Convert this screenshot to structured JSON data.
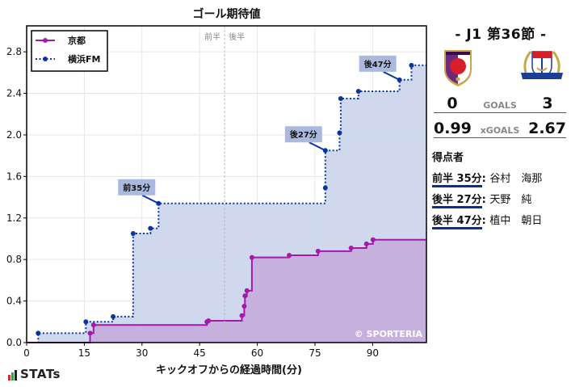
{
  "chart": {
    "title": "ゴール期待値",
    "half_labels": {
      "first": "前半",
      "second": "後半"
    },
    "watermark": "© SPORTERIA"
  },
  "sidebar": {
    "round": "- J1 第36節 -",
    "home_team": "京都",
    "away_team": "横浜FM",
    "goals_label": "GOALS",
    "home_goals": "0",
    "away_goals": "3",
    "xgoals_label": "xGOALS",
    "home_xg": "0.99",
    "away_xg": "2.67",
    "scorers_title": "得点者",
    "scorers": [
      {
        "when": "前半 35分",
        "name": "谷村　海那"
      },
      {
        "when": "後半 27分",
        "name": "天野　純"
      },
      {
        "when": "後半 47分",
        "name": "植中　朝日"
      }
    ]
  },
  "footer": {
    "brand": "STATs"
  },
  "colors": {
    "home": "#a31aab",
    "home_fill": "#c4aedd",
    "away": "#0a34a0",
    "away_fill": "#ccd6ec",
    "annotation_bg": "#aab9dd"
  },
  "chart_data": {
    "type": "line",
    "step": true,
    "title": "ゴール期待値",
    "xlabel": "キックオフからの経過時間(分)",
    "ylabel": "",
    "xlim": [
      0,
      104
    ],
    "ylim": [
      0,
      3.05
    ],
    "xticks": [
      0,
      15,
      30,
      45,
      60,
      75,
      90
    ],
    "yticks": [
      0.0,
      0.4,
      0.8,
      1.2,
      1.6,
      2.0,
      2.4,
      2.8
    ],
    "grid": true,
    "legend_position": "upper left",
    "half_time_line_x": 51.5,
    "series": [
      {
        "name": "京都",
        "style": "solid",
        "points": [
          [
            16.5,
            0.09
          ],
          [
            17.4,
            0.17
          ],
          [
            46.9,
            0.2
          ],
          [
            47.3,
            0.21
          ],
          [
            56.0,
            0.26
          ],
          [
            56.6,
            0.35
          ],
          [
            56.8,
            0.45
          ],
          [
            57.3,
            0.5
          ],
          [
            58.6,
            0.82
          ],
          [
            68.3,
            0.84
          ],
          [
            75.8,
            0.88
          ],
          [
            84.4,
            0.91
          ],
          [
            88.4,
            0.95
          ],
          [
            90.1,
            0.99
          ]
        ],
        "final": 0.99
      },
      {
        "name": "横浜FM",
        "style": "dotted",
        "points": [
          [
            3.0,
            0.09
          ],
          [
            15.4,
            0.2
          ],
          [
            22.5,
            0.25
          ],
          [
            27.7,
            1.05
          ],
          [
            32.2,
            1.1
          ],
          [
            34.3,
            1.34
          ],
          [
            77.7,
            1.49
          ],
          [
            77.7,
            1.85
          ],
          [
            81.4,
            2.02
          ],
          [
            81.7,
            2.35
          ],
          [
            86.3,
            2.42
          ],
          [
            97.0,
            2.53
          ],
          [
            100.1,
            2.67
          ]
        ],
        "final": 2.67
      }
    ],
    "annotations": [
      {
        "text": "前35分",
        "x": 34.3,
        "y": 1.34
      },
      {
        "text": "後27分",
        "x": 77.7,
        "y": 1.85
      },
      {
        "text": "後47分",
        "x": 97.0,
        "y": 2.53
      }
    ]
  }
}
